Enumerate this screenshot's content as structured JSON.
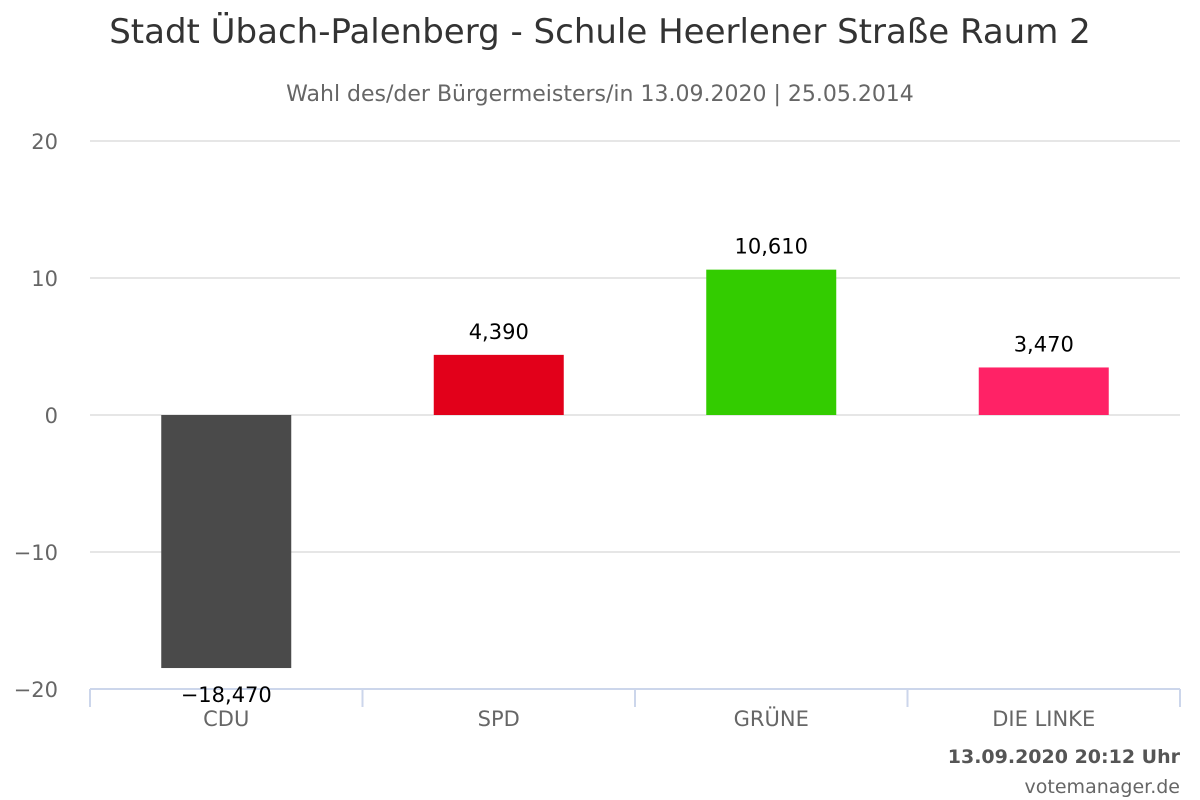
{
  "chart_data": {
    "type": "bar",
    "title": "Stadt Übach-Palenberg - Schule Heerlener Straße Raum 2",
    "subtitle": "Wahl des/der Bürgermeisters/in 13.09.2020 | 25.05.2014",
    "categories": [
      "CDU",
      "SPD",
      "GRÜNE",
      "DIE LINKE"
    ],
    "values": [
      -18.47,
      4.39,
      10.61,
      3.47
    ],
    "data_labels": [
      "−18,470",
      "4,390",
      "10,610",
      "3,470"
    ],
    "colors": [
      "#4a4a4a",
      "#e2001a",
      "#33cc00",
      "#ff2266"
    ],
    "ylim": [
      -20,
      20
    ],
    "yticks": [
      20,
      10,
      0,
      -10,
      -20
    ],
    "ytick_labels": [
      "20",
      "10",
      "0",
      "−10",
      "−20"
    ],
    "grid": true,
    "legend": false
  },
  "footer": {
    "timestamp": "13.09.2020 20:12 Uhr",
    "credit": "votemanager.de"
  },
  "style": {
    "axis_color": "#ccd6eb",
    "grid_color": "#e6e6e6",
    "label_color": "#666666"
  }
}
